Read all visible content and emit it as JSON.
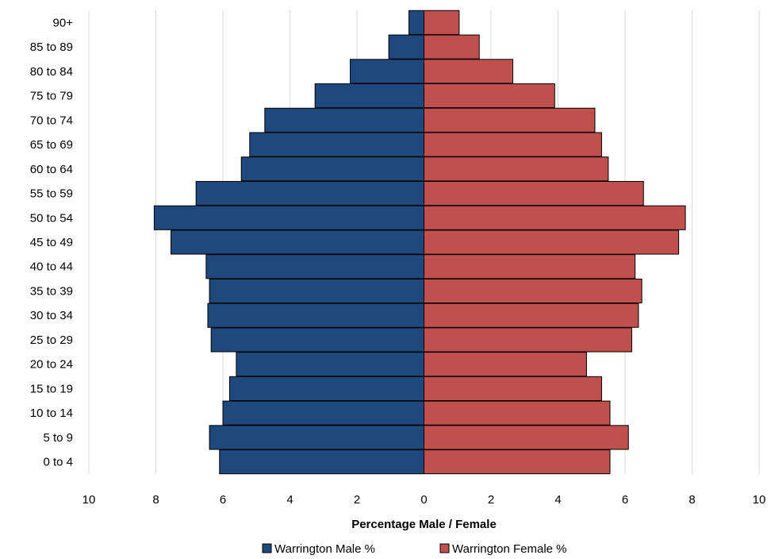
{
  "chart_data": {
    "type": "bar",
    "orientation": "horizontal",
    "layout": "population-pyramid",
    "categories": [
      "0 to 4",
      "5 to 9",
      "10 to 14",
      "15 to 19",
      "20 to 24",
      "25 to 29",
      "30 to 34",
      "35 to 39",
      "40 to 44",
      "45 to 49",
      "50 to 54",
      "55 to 59",
      "60 to 64",
      "65 to 69",
      "70 to 74",
      "75 to 79",
      "80 to 84",
      "85 to 89",
      "90+"
    ],
    "series": [
      {
        "name": "Warrington Male %",
        "side": "left",
        "color": "#1f497d",
        "values": [
          6.1,
          6.4,
          6.0,
          5.8,
          5.6,
          6.35,
          6.45,
          6.4,
          6.5,
          7.55,
          8.05,
          6.8,
          5.45,
          5.2,
          4.75,
          3.25,
          2.2,
          1.05,
          0.45
        ]
      },
      {
        "name": "Warrington Female %",
        "side": "right",
        "color": "#c0504d",
        "values": [
          5.55,
          6.1,
          5.55,
          5.3,
          4.85,
          6.2,
          6.4,
          6.5,
          6.3,
          7.6,
          7.8,
          6.55,
          5.5,
          5.3,
          5.1,
          3.9,
          2.65,
          1.65,
          1.05
        ]
      }
    ],
    "xlim": [
      -10,
      10
    ],
    "xticks": [
      -10,
      -8,
      -6,
      -4,
      -2,
      0,
      2,
      4,
      6,
      8,
      10
    ],
    "xtick_labels": [
      "10",
      "8",
      "6",
      "4",
      "2",
      "0",
      "2",
      "4",
      "6",
      "8",
      "10"
    ],
    "xlabel": "Percentage Male / Female",
    "ylabel": "",
    "title": "",
    "grid": "vertical",
    "legend_position": "bottom"
  }
}
